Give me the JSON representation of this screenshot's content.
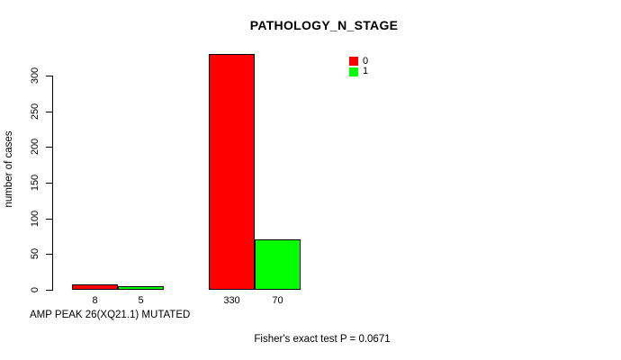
{
  "chart_data": {
    "type": "bar",
    "title": "PATHOLOGY_N_STAGE",
    "ylabel": "number of cases",
    "xlabel": "AMP PEAK 26(XQ21.1) MUTATED",
    "annotation": "Fisher's exact test P = 0.0671",
    "ylim": [
      0,
      300
    ],
    "yticks": [
      0,
      50,
      100,
      150,
      200,
      250,
      300
    ],
    "grid": false,
    "legend_position": "top-right",
    "legend_entries": [
      "0",
      "1"
    ],
    "series": [
      {
        "name": "0",
        "color": "#FF0000",
        "values": [
          8,
          330
        ]
      },
      {
        "name": "1",
        "color": "#00FF00",
        "values": [
          5,
          70
        ]
      }
    ],
    "bar_value_labels": [
      [
        "8",
        "330"
      ],
      [
        "5",
        "70"
      ]
    ],
    "colors": {
      "background": "#FFFFFF",
      "axis": "#000000",
      "text": "#000000"
    }
  }
}
